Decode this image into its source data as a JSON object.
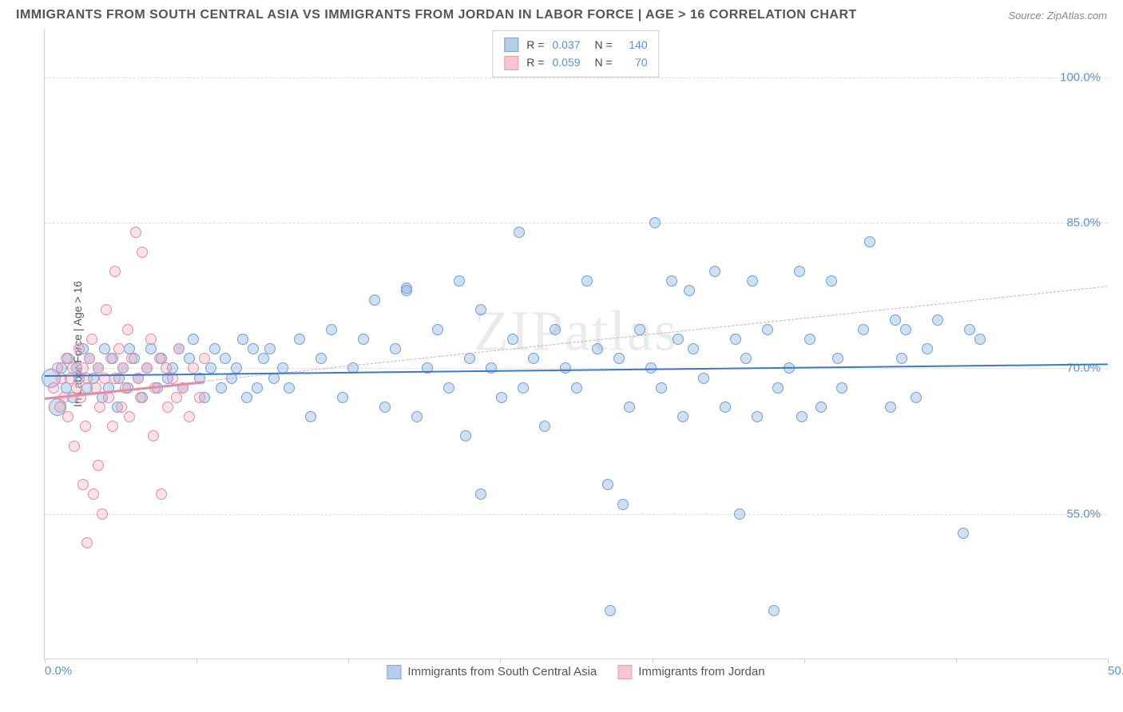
{
  "title": "IMMIGRANTS FROM SOUTH CENTRAL ASIA VS IMMIGRANTS FROM JORDAN IN LABOR FORCE | AGE > 16 CORRELATION CHART",
  "source": "Source: ZipAtlas.com",
  "watermark": "ZIPatlas",
  "ylabel": "In Labor Force | Age > 16",
  "chart": {
    "type": "scatter",
    "background_color": "#ffffff",
    "grid_color": "#dddddd",
    "axis_color": "#cfcfcf",
    "tick_label_color": "#5b8fd6",
    "tick_fontsize": 15,
    "xlim": [
      0,
      50
    ],
    "ylim": [
      40,
      105
    ],
    "yticks": [
      {
        "v": 55,
        "label": "55.0%"
      },
      {
        "v": 70,
        "label": "70.0%"
      },
      {
        "v": 85,
        "label": "85.0%"
      },
      {
        "v": 100,
        "label": "100.0%"
      }
    ],
    "xticks_minor": [
      0,
      7.14,
      14.28,
      21.42,
      28.57,
      35.71,
      42.85,
      50
    ],
    "xticks": [
      {
        "v": 0,
        "label": "0.0%",
        "cls": "min"
      },
      {
        "v": 50,
        "label": "50.0%",
        "cls": "max"
      }
    ],
    "series": [
      {
        "name": "Immigrants from South Central Asia",
        "r": "0.037",
        "n": "140",
        "fill": "rgba(120,165,220,0.35)",
        "stroke": "#6f9ed8",
        "swatch_fill": "#b6cdea",
        "swatch_border": "#7aa3d6",
        "marker_radius": 7,
        "trend": {
          "x1": 0,
          "y1": 69.3,
          "x2": 50,
          "y2": 70.5,
          "color": "#3b78c8",
          "width": 2.5,
          "dash": false
        },
        "trend_fill": {
          "x1": 0,
          "y1": 68.8,
          "x2": 10,
          "y2": 69.1,
          "color": "#6f9ed8"
        },
        "points": [
          {
            "x": 0.3,
            "y": 69,
            "r": 12
          },
          {
            "x": 0.6,
            "y": 66,
            "r": 11
          },
          {
            "x": 0.8,
            "y": 70
          },
          {
            "x": 1.0,
            "y": 68
          },
          {
            "x": 1.1,
            "y": 71
          },
          {
            "x": 1.3,
            "y": 67
          },
          {
            "x": 1.5,
            "y": 70
          },
          {
            "x": 1.6,
            "y": 69
          },
          {
            "x": 1.8,
            "y": 72
          },
          {
            "x": 2.0,
            "y": 68
          },
          {
            "x": 2.1,
            "y": 71
          },
          {
            "x": 2.3,
            "y": 69
          },
          {
            "x": 2.5,
            "y": 70
          },
          {
            "x": 2.7,
            "y": 67
          },
          {
            "x": 2.8,
            "y": 72
          },
          {
            "x": 3.0,
            "y": 68
          },
          {
            "x": 3.2,
            "y": 71
          },
          {
            "x": 3.4,
            "y": 66
          },
          {
            "x": 3.5,
            "y": 69
          },
          {
            "x": 3.7,
            "y": 70
          },
          {
            "x": 3.9,
            "y": 68
          },
          {
            "x": 4.0,
            "y": 72
          },
          {
            "x": 4.2,
            "y": 71
          },
          {
            "x": 4.4,
            "y": 69
          },
          {
            "x": 4.6,
            "y": 67
          },
          {
            "x": 4.8,
            "y": 70
          },
          {
            "x": 5.0,
            "y": 72
          },
          {
            "x": 5.3,
            "y": 68
          },
          {
            "x": 5.5,
            "y": 71
          },
          {
            "x": 5.8,
            "y": 69
          },
          {
            "x": 6.0,
            "y": 70
          },
          {
            "x": 6.3,
            "y": 72
          },
          {
            "x": 6.5,
            "y": 68
          },
          {
            "x": 6.8,
            "y": 71
          },
          {
            "x": 7.0,
            "y": 73
          },
          {
            "x": 7.3,
            "y": 69
          },
          {
            "x": 7.5,
            "y": 67
          },
          {
            "x": 7.8,
            "y": 70
          },
          {
            "x": 8.0,
            "y": 72
          },
          {
            "x": 8.3,
            "y": 68
          },
          {
            "x": 8.5,
            "y": 71
          },
          {
            "x": 8.8,
            "y": 69
          },
          {
            "x": 9.0,
            "y": 70
          },
          {
            "x": 9.3,
            "y": 73
          },
          {
            "x": 9.5,
            "y": 67
          },
          {
            "x": 9.8,
            "y": 72
          },
          {
            "x": 10.0,
            "y": 68
          },
          {
            "x": 10.3,
            "y": 71
          },
          {
            "x": 10.6,
            "y": 72
          },
          {
            "x": 10.8,
            "y": 69
          },
          {
            "x": 11.2,
            "y": 70
          },
          {
            "x": 11.5,
            "y": 68
          },
          {
            "x": 12.0,
            "y": 73
          },
          {
            "x": 12.5,
            "y": 65
          },
          {
            "x": 13.0,
            "y": 71
          },
          {
            "x": 13.5,
            "y": 74
          },
          {
            "x": 14.0,
            "y": 67
          },
          {
            "x": 14.5,
            "y": 70
          },
          {
            "x": 15.0,
            "y": 73
          },
          {
            "x": 15.5,
            "y": 77
          },
          {
            "x": 16.0,
            "y": 66
          },
          {
            "x": 16.5,
            "y": 72
          },
          {
            "x": 17.0,
            "y": 78
          },
          {
            "x": 17.0,
            "y": 78.3
          },
          {
            "x": 17.5,
            "y": 65
          },
          {
            "x": 18.0,
            "y": 70
          },
          {
            "x": 18.5,
            "y": 74
          },
          {
            "x": 19.0,
            "y": 68
          },
          {
            "x": 19.5,
            "y": 79
          },
          {
            "x": 19.8,
            "y": 63
          },
          {
            "x": 20.0,
            "y": 71
          },
          {
            "x": 20.5,
            "y": 76
          },
          {
            "x": 20.5,
            "y": 57
          },
          {
            "x": 21.0,
            "y": 70
          },
          {
            "x": 21.5,
            "y": 67
          },
          {
            "x": 22.0,
            "y": 73
          },
          {
            "x": 22.3,
            "y": 84
          },
          {
            "x": 22.5,
            "y": 68
          },
          {
            "x": 23.0,
            "y": 71
          },
          {
            "x": 23.5,
            "y": 64
          },
          {
            "x": 24.0,
            "y": 74
          },
          {
            "x": 24.5,
            "y": 70
          },
          {
            "x": 25.0,
            "y": 68
          },
          {
            "x": 25.5,
            "y": 79
          },
          {
            "x": 26.0,
            "y": 72
          },
          {
            "x": 26.5,
            "y": 58
          },
          {
            "x": 26.6,
            "y": 45
          },
          {
            "x": 27.0,
            "y": 71
          },
          {
            "x": 27.2,
            "y": 56
          },
          {
            "x": 27.5,
            "y": 66
          },
          {
            "x": 28.0,
            "y": 74
          },
          {
            "x": 28.5,
            "y": 70
          },
          {
            "x": 28.7,
            "y": 85
          },
          {
            "x": 29.0,
            "y": 68
          },
          {
            "x": 29.5,
            "y": 79
          },
          {
            "x": 29.8,
            "y": 73
          },
          {
            "x": 30.0,
            "y": 65
          },
          {
            "x": 30.3,
            "y": 78
          },
          {
            "x": 30.5,
            "y": 72
          },
          {
            "x": 31.0,
            "y": 69
          },
          {
            "x": 31.5,
            "y": 80
          },
          {
            "x": 32.0,
            "y": 66
          },
          {
            "x": 32.5,
            "y": 73
          },
          {
            "x": 32.7,
            "y": 55
          },
          {
            "x": 33.0,
            "y": 71
          },
          {
            "x": 33.3,
            "y": 79
          },
          {
            "x": 33.5,
            "y": 65
          },
          {
            "x": 34.0,
            "y": 74
          },
          {
            "x": 34.3,
            "y": 45
          },
          {
            "x": 34.5,
            "y": 68
          },
          {
            "x": 35.0,
            "y": 70
          },
          {
            "x": 35.5,
            "y": 80
          },
          {
            "x": 35.6,
            "y": 65
          },
          {
            "x": 36.0,
            "y": 73
          },
          {
            "x": 36.5,
            "y": 66
          },
          {
            "x": 37.0,
            "y": 79
          },
          {
            "x": 37.3,
            "y": 71
          },
          {
            "x": 37.5,
            "y": 68
          },
          {
            "x": 38.5,
            "y": 74
          },
          {
            "x": 38.8,
            "y": 83
          },
          {
            "x": 39.8,
            "y": 66
          },
          {
            "x": 40.0,
            "y": 75
          },
          {
            "x": 40.3,
            "y": 71
          },
          {
            "x": 40.5,
            "y": 74
          },
          {
            "x": 41.0,
            "y": 67
          },
          {
            "x": 41.5,
            "y": 72
          },
          {
            "x": 42.0,
            "y": 75
          },
          {
            "x": 43.2,
            "y": 53
          },
          {
            "x": 43.5,
            "y": 74
          },
          {
            "x": 44.0,
            "y": 73
          }
        ]
      },
      {
        "name": "Immigrants from Jordan",
        "r": "0.059",
        "n": "70",
        "fill": "rgba(240,160,180,0.30)",
        "stroke": "#e48ca3",
        "swatch_fill": "#f5c5d1",
        "swatch_border": "#e6a0b0",
        "marker_radius": 7,
        "trend": {
          "x1": 0,
          "y1": 67.0,
          "x2": 50,
          "y2": 78.5,
          "color": "#e6a0b0",
          "width": 1.5,
          "dash": true
        },
        "trend_fill": {
          "x1": 0,
          "y1": 67.0,
          "x2": 7.5,
          "y2": 68.7,
          "color": "#e48ca3"
        },
        "points": [
          {
            "x": 0.4,
            "y": 68
          },
          {
            "x": 0.6,
            "y": 70
          },
          {
            "x": 0.7,
            "y": 66
          },
          {
            "x": 0.8,
            "y": 69
          },
          {
            "x": 0.9,
            "y": 67
          },
          {
            "x": 1.0,
            "y": 71
          },
          {
            "x": 1.1,
            "y": 65
          },
          {
            "x": 1.2,
            "y": 69
          },
          {
            "x": 1.3,
            "y": 70
          },
          {
            "x": 1.4,
            "y": 62
          },
          {
            "x": 1.5,
            "y": 68
          },
          {
            "x": 1.6,
            "y": 72
          },
          {
            "x": 1.7,
            "y": 67
          },
          {
            "x": 1.8,
            "y": 58
          },
          {
            "x": 1.8,
            "y": 70
          },
          {
            "x": 1.9,
            "y": 64
          },
          {
            "x": 2.0,
            "y": 69
          },
          {
            "x": 2.0,
            "y": 52
          },
          {
            "x": 2.1,
            "y": 71
          },
          {
            "x": 2.2,
            "y": 73
          },
          {
            "x": 2.3,
            "y": 57
          },
          {
            "x": 2.4,
            "y": 68
          },
          {
            "x": 2.5,
            "y": 60
          },
          {
            "x": 2.5,
            "y": 70
          },
          {
            "x": 2.6,
            "y": 66
          },
          {
            "x": 2.7,
            "y": 55
          },
          {
            "x": 2.8,
            "y": 69
          },
          {
            "x": 2.9,
            "y": 76
          },
          {
            "x": 3.0,
            "y": 67
          },
          {
            "x": 3.1,
            "y": 71
          },
          {
            "x": 3.2,
            "y": 64
          },
          {
            "x": 3.3,
            "y": 80
          },
          {
            "x": 3.3,
            "y": 69
          },
          {
            "x": 3.5,
            "y": 72
          },
          {
            "x": 3.6,
            "y": 66
          },
          {
            "x": 3.7,
            "y": 70
          },
          {
            "x": 3.8,
            "y": 68
          },
          {
            "x": 3.9,
            "y": 74
          },
          {
            "x": 4.0,
            "y": 65
          },
          {
            "x": 4.1,
            "y": 71
          },
          {
            "x": 4.3,
            "y": 84
          },
          {
            "x": 4.4,
            "y": 69
          },
          {
            "x": 4.5,
            "y": 67
          },
          {
            "x": 4.6,
            "y": 82
          },
          {
            "x": 4.8,
            "y": 70
          },
          {
            "x": 5.0,
            "y": 73
          },
          {
            "x": 5.1,
            "y": 63
          },
          {
            "x": 5.2,
            "y": 68
          },
          {
            "x": 5.4,
            "y": 71
          },
          {
            "x": 5.5,
            "y": 57
          },
          {
            "x": 5.7,
            "y": 70
          },
          {
            "x": 5.8,
            "y": 66
          },
          {
            "x": 6.0,
            "y": 69
          },
          {
            "x": 6.2,
            "y": 67
          },
          {
            "x": 6.3,
            "y": 72
          },
          {
            "x": 6.5,
            "y": 68
          },
          {
            "x": 6.8,
            "y": 65
          },
          {
            "x": 7.0,
            "y": 70
          },
          {
            "x": 7.3,
            "y": 67
          },
          {
            "x": 7.5,
            "y": 71
          }
        ]
      }
    ]
  },
  "legend_bottom": [
    {
      "label": "Immigrants from South Central Asia",
      "fill": "#b6cdea",
      "border": "#7aa3d6"
    },
    {
      "label": "Immigrants from Jordan",
      "fill": "#f5c5d1",
      "border": "#e6a0b0"
    }
  ]
}
